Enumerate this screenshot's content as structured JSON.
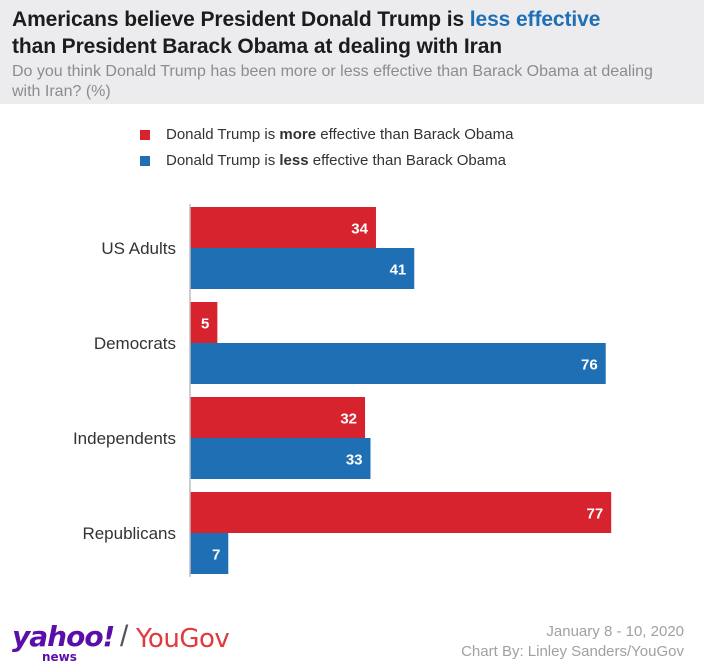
{
  "title": {
    "part1": "Americans believe President Donald Trump is ",
    "highlight": "less effective",
    "part2": "than President Barack Obama at dealing with Iran"
  },
  "subtitle": "Do you think Donald Trump has been more or less effective than Barack Obama at dealing with Iran? (%)",
  "legend": [
    {
      "pre": "Donald Trump is ",
      "bold": "more",
      "post": " effective than Barack Obama",
      "color": "#d7232e"
    },
    {
      "pre": "Donald Trump is ",
      "bold": "less",
      "post": " effective than Barack Obama",
      "color": "#1f6fb5"
    }
  ],
  "chart_data": {
    "type": "bar",
    "orientation": "horizontal",
    "categories": [
      "US Adults",
      "Democrats",
      "Independents",
      "Republicans"
    ],
    "series": [
      {
        "name": "Donald Trump is more effective than Barack Obama",
        "color": "#d7232e",
        "values": [
          34,
          5,
          32,
          77
        ]
      },
      {
        "name": "Donald Trump is less effective than Barack Obama",
        "color": "#1f6fb5",
        "values": [
          41,
          76,
          33,
          7
        ]
      }
    ],
    "title": "Americans believe President Donald Trump is less effective than President Barack Obama at dealing with Iran",
    "xlabel": "",
    "ylabel": "",
    "xlim": [
      0,
      80
    ],
    "grid": false,
    "legend_position": "top"
  },
  "footer": {
    "logo_yahoo": "yahoo!",
    "logo_news": "news",
    "logo_slash": "/",
    "logo_yougov": "YouGov",
    "date": "January 8 - 10, 2020",
    "credit": "Chart By: Linley Sanders/YouGov"
  }
}
